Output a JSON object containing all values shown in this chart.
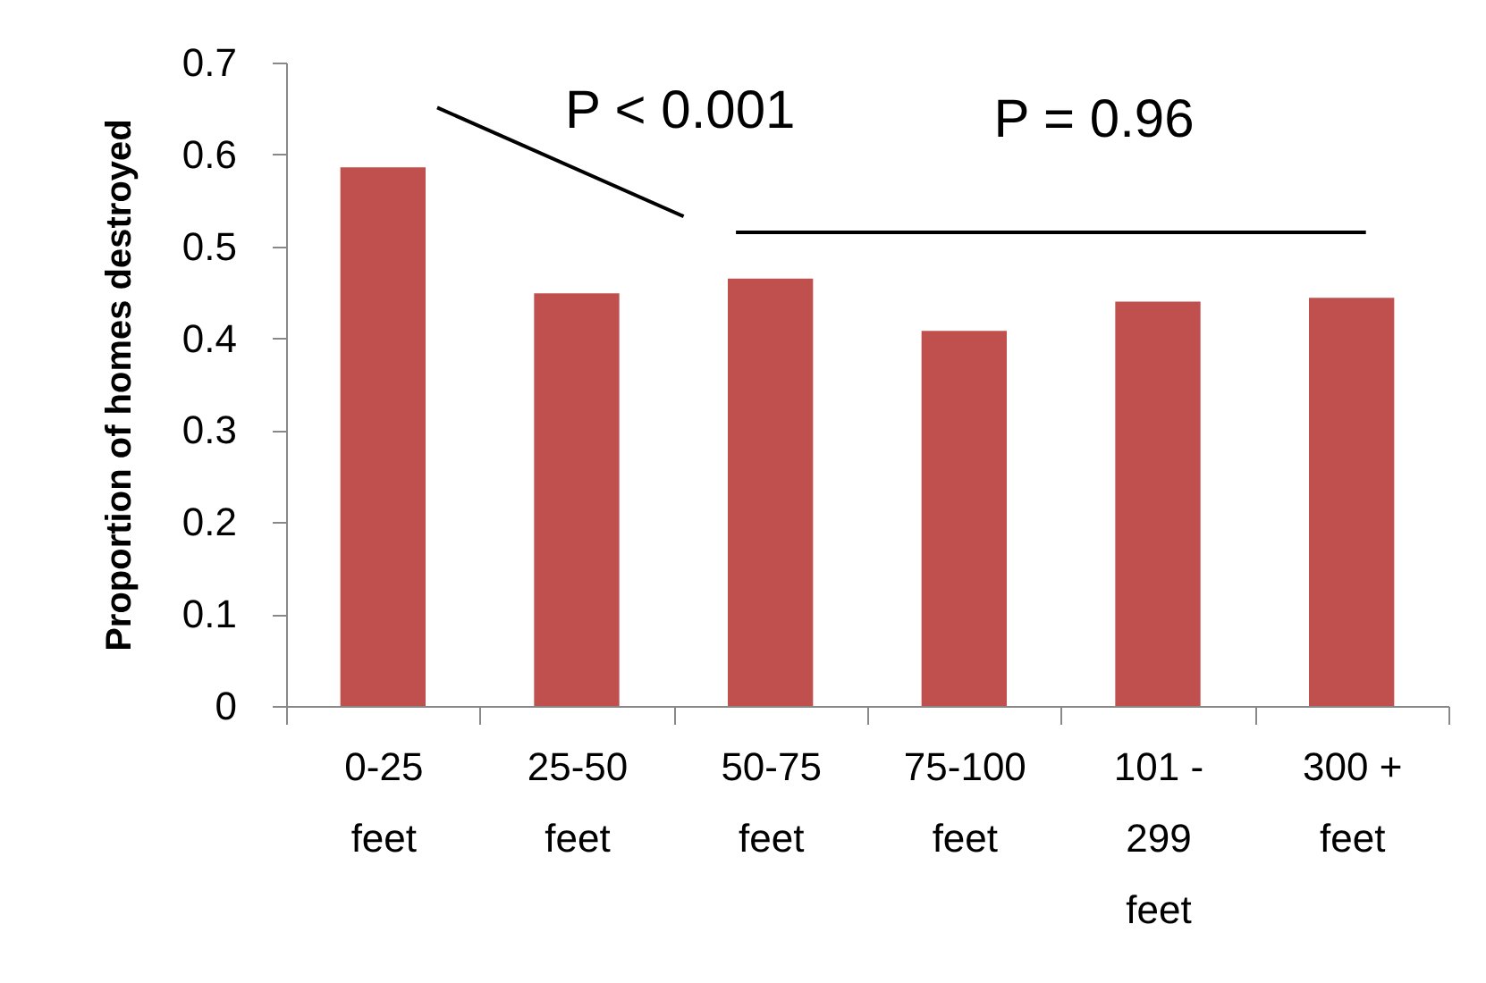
{
  "chart_data": {
    "type": "bar",
    "ylabel": "Proportion of homes destroyed",
    "categories": [
      "0-25\nfeet",
      "25-50\nfeet",
      "50-75\nfeet",
      "75-100\nfeet",
      "101 -\n299\nfeet",
      "300 +\nfeet"
    ],
    "values": [
      0.586,
      0.449,
      0.465,
      0.408,
      0.44,
      0.444
    ],
    "color": "#c0504d",
    "ylim": [
      0,
      0.7
    ],
    "yticks": [
      0,
      0.1,
      0.2,
      0.3,
      0.4,
      0.5,
      0.6,
      0.7
    ],
    "annotations": [
      "P < 0.001",
      "P = 0.96"
    ],
    "grid": false
  }
}
